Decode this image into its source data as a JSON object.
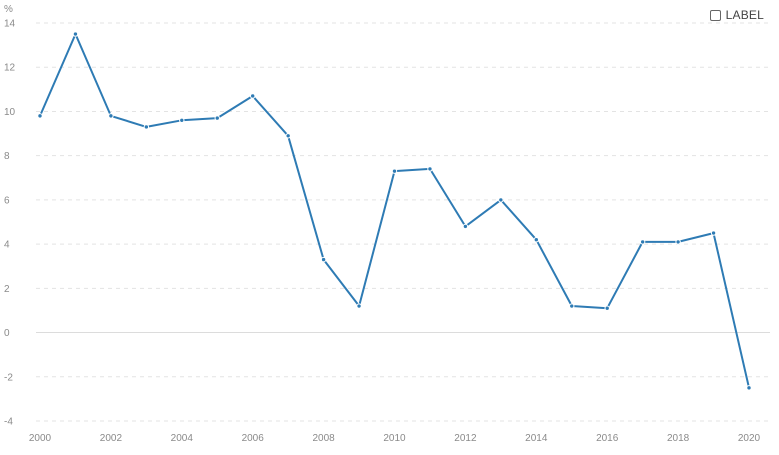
{
  "chart_data": {
    "type": "line",
    "unit": "%",
    "x": [
      2000,
      2001,
      2002,
      2003,
      2004,
      2005,
      2006,
      2007,
      2008,
      2009,
      2010,
      2011,
      2012,
      2013,
      2014,
      2015,
      2016,
      2017,
      2018,
      2019,
      2020
    ],
    "series": [
      {
        "values": [
          9.8,
          13.5,
          9.8,
          9.3,
          9.6,
          9.7,
          10.7,
          8.9,
          3.3,
          1.2,
          7.3,
          7.4,
          4.8,
          6.0,
          4.2,
          1.2,
          1.1,
          4.1,
          4.1,
          4.5,
          -2.5
        ],
        "color": "#2e7bb4"
      }
    ],
    "xticks": [
      "2000",
      "2002",
      "2004",
      "2006",
      "2008",
      "2010",
      "2012",
      "2014",
      "2016",
      "2018",
      "2020"
    ],
    "yticks": [
      "14",
      "12",
      "10",
      "8",
      "6",
      "4",
      "2",
      "0",
      "-2",
      "-4"
    ],
    "ylim": [
      -4,
      14
    ],
    "xlim": [
      2000,
      2020
    ],
    "grid": true,
    "legend_position": "top-right"
  },
  "legend": {
    "label": "LABEL"
  }
}
